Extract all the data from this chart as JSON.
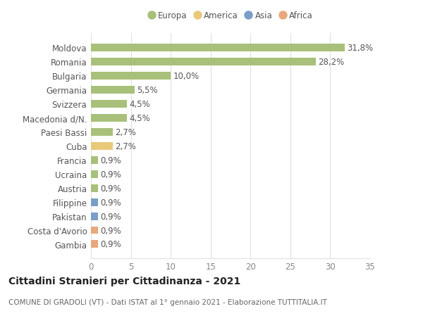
{
  "categories": [
    "Gambia",
    "Costa d'Avorio",
    "Pakistan",
    "Filippine",
    "Austria",
    "Ucraina",
    "Francia",
    "Cuba",
    "Paesi Bassi",
    "Macedonia d/N.",
    "Svizzera",
    "Germania",
    "Bulgaria",
    "Romania",
    "Moldova"
  ],
  "values": [
    0.9,
    0.9,
    0.9,
    0.9,
    0.9,
    0.9,
    0.9,
    2.7,
    2.7,
    4.5,
    4.5,
    5.5,
    10.0,
    28.2,
    31.8
  ],
  "labels": [
    "0,9%",
    "0,9%",
    "0,9%",
    "0,9%",
    "0,9%",
    "0,9%",
    "0,9%",
    "2,7%",
    "2,7%",
    "4,5%",
    "4,5%",
    "5,5%",
    "10,0%",
    "28,2%",
    "31,8%"
  ],
  "colors": [
    "#e8a87c",
    "#e8a87c",
    "#7b9ec9",
    "#7b9ec9",
    "#a8c07a",
    "#a8c07a",
    "#a8c07a",
    "#e8c97a",
    "#a8c07a",
    "#a8c07a",
    "#a8c07a",
    "#a8c07a",
    "#a8c07a",
    "#a8c07a",
    "#a8c07a"
  ],
  "continent": [
    "Africa",
    "Africa",
    "Asia",
    "Asia",
    "Europa",
    "Europa",
    "Europa",
    "America",
    "Europa",
    "Europa",
    "Europa",
    "Europa",
    "Europa",
    "Europa",
    "Europa"
  ],
  "legend_labels": [
    "Europa",
    "America",
    "Asia",
    "Africa"
  ],
  "legend_colors": [
    "#a8c07a",
    "#e8c97a",
    "#7b9ec9",
    "#e8a87c"
  ],
  "xlim": [
    0,
    35
  ],
  "xticks": [
    0,
    5,
    10,
    15,
    20,
    25,
    30,
    35
  ],
  "title": "Cittadini Stranieri per Cittadinanza - 2021",
  "subtitle": "COMUNE DI GRADOLI (VT) - Dati ISTAT al 1° gennaio 2021 - Elaborazione TUTTITALIA.IT",
  "bg_color": "#ffffff",
  "grid_color": "#e0e0e0",
  "label_fontsize": 8.5,
  "tick_fontsize": 8.5,
  "title_fontsize": 10,
  "subtitle_fontsize": 7.5,
  "bar_height": 0.55
}
